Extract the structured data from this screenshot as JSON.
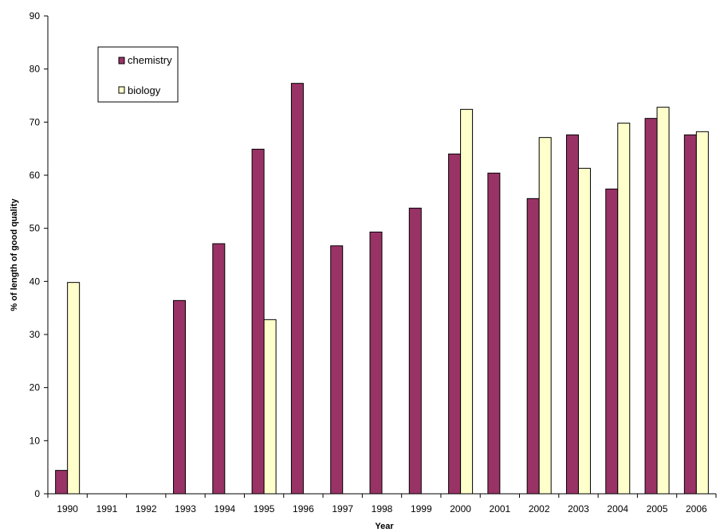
{
  "chart_data": {
    "type": "bar",
    "title": "",
    "xlabel": "Year",
    "ylabel": "% of length of good quality",
    "ylim": [
      0,
      90
    ],
    "yticks": [
      0,
      10,
      20,
      30,
      40,
      50,
      60,
      70,
      80,
      90
    ],
    "grid": false,
    "legend_position": "top-left",
    "categories": [
      "1990",
      "1991",
      "1992",
      "1993",
      "1994",
      "1995",
      "1996",
      "1997",
      "1998",
      "1999",
      "2000",
      "2001",
      "2002",
      "2003",
      "2004",
      "2005",
      "2006"
    ],
    "series": [
      {
        "name": "chemistry",
        "color": "#993366",
        "values": [
          4.4,
          null,
          null,
          36.4,
          47.1,
          64.9,
          77.3,
          46.7,
          49.3,
          53.8,
          64.0,
          60.4,
          55.6,
          67.6,
          57.4,
          70.7,
          67.6
        ]
      },
      {
        "name": "biology",
        "color": "#FFFFCC",
        "values": [
          39.8,
          null,
          null,
          null,
          null,
          32.8,
          null,
          null,
          null,
          null,
          72.4,
          null,
          67.1,
          61.3,
          69.8,
          72.8,
          68.2
        ]
      }
    ]
  }
}
